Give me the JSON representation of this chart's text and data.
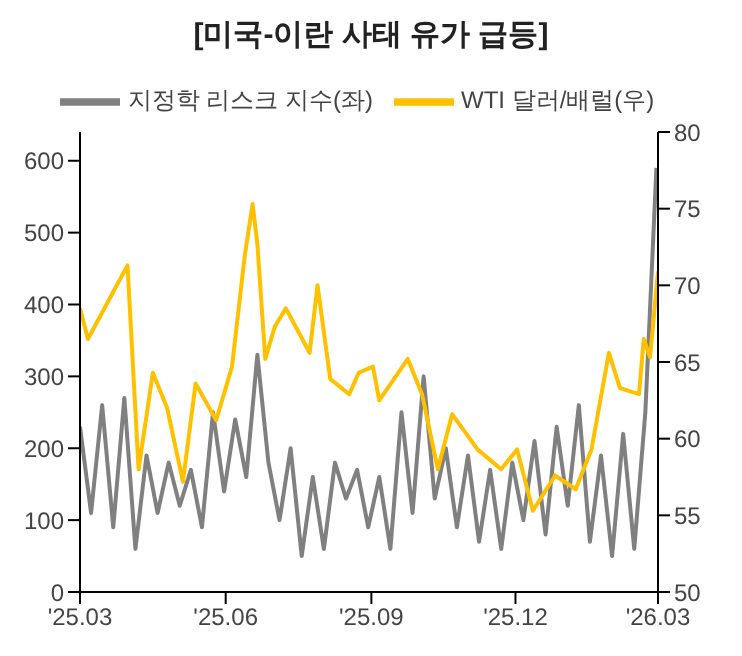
{
  "chart_data": {
    "type": "line",
    "title": "[미국-이란 사태 유가 급등]",
    "legend": "top",
    "xlim": [
      "2025-03-01",
      "2026-03-01"
    ],
    "xticks": [
      {
        "value": "2025-03-01",
        "label": "'25.03"
      },
      {
        "value": "2025-06-01",
        "label": "'25.06"
      },
      {
        "value": "2025-09-01",
        "label": "'25.09"
      },
      {
        "value": "2025-12-01",
        "label": "'25.12"
      },
      {
        "value": "2026-03-01",
        "label": "'26.03"
      }
    ],
    "ylim": [
      0,
      640
    ],
    "yticks": [
      0,
      100,
      200,
      300,
      400,
      500,
      600
    ],
    "y2lim": [
      50,
      80
    ],
    "y2ticks": [
      50,
      55,
      60,
      65,
      70,
      75,
      80
    ],
    "series": [
      {
        "name": "지정학 리스크 지수(좌)",
        "color": "#808080",
        "axis": "y",
        "x": [
          "2025-03-01",
          "2025-03-08",
          "2025-03-15",
          "2025-03-22",
          "2025-03-29",
          "2025-04-05",
          "2025-04-12",
          "2025-04-19",
          "2025-04-26",
          "2025-05-03",
          "2025-05-10",
          "2025-05-17",
          "2025-05-24",
          "2025-05-31",
          "2025-06-07",
          "2025-06-14",
          "2025-06-21",
          "2025-06-28",
          "2025-07-05",
          "2025-07-12",
          "2025-07-19",
          "2025-07-26",
          "2025-08-02",
          "2025-08-09",
          "2025-08-16",
          "2025-08-23",
          "2025-08-30",
          "2025-09-06",
          "2025-09-13",
          "2025-09-20",
          "2025-09-27",
          "2025-10-04",
          "2025-10-11",
          "2025-10-18",
          "2025-10-25",
          "2025-11-01",
          "2025-11-08",
          "2025-11-15",
          "2025-11-22",
          "2025-11-29",
          "2025-12-06",
          "2025-12-13",
          "2025-12-20",
          "2025-12-27",
          "2026-01-03",
          "2026-01-10",
          "2026-01-17",
          "2026-01-24",
          "2026-01-31",
          "2026-02-07",
          "2026-02-14",
          "2026-02-21",
          "2026-02-28"
        ],
        "values": [
          230,
          110,
          260,
          90,
          270,
          60,
          190,
          110,
          180,
          120,
          170,
          90,
          250,
          140,
          240,
          160,
          330,
          180,
          100,
          200,
          50,
          160,
          60,
          180,
          130,
          170,
          90,
          160,
          60,
          250,
          110,
          300,
          130,
          200,
          90,
          190,
          70,
          170,
          60,
          180,
          100,
          210,
          80,
          230,
          120,
          260,
          70,
          190,
          50,
          220,
          60,
          250,
          590
        ]
      },
      {
        "name": "WTI 달러/배럴(우)",
        "color": "#ffc000",
        "axis": "y2",
        "x": [
          "2025-03-01",
          "2025-03-06",
          "2025-03-31",
          "2025-04-07",
          "2025-04-16",
          "2025-04-25",
          "2025-05-05",
          "2025-05-13",
          "2025-05-26",
          "2025-06-05",
          "2025-06-13",
          "2025-06-18",
          "2025-06-21",
          "2025-06-26",
          "2025-07-02",
          "2025-07-09",
          "2025-07-24",
          "2025-07-29",
          "2025-08-06",
          "2025-08-18",
          "2025-08-24",
          "2025-09-02",
          "2025-09-06",
          "2025-09-24",
          "2025-10-03",
          "2025-10-13",
          "2025-10-22",
          "2025-11-07",
          "2025-11-22",
          "2025-12-02",
          "2025-12-12",
          "2025-12-26",
          "2026-01-08",
          "2026-01-18",
          "2026-01-29",
          "2026-02-05",
          "2026-02-17",
          "2026-02-20",
          "2026-02-24",
          "2026-03-01"
        ],
        "values": [
          68.5,
          66.5,
          71.3,
          58,
          64.3,
          62,
          57.2,
          63.6,
          61.2,
          64.7,
          71.9,
          75.3,
          72.7,
          65.2,
          67.3,
          68.5,
          65.6,
          70,
          63.9,
          62.9,
          64.3,
          64.7,
          62.5,
          65.2,
          62.9,
          58,
          61.6,
          59.3,
          58,
          59.3,
          55.3,
          57.6,
          56.7,
          59.3,
          65.6,
          63.3,
          62.9,
          66.5,
          65.3,
          70.9
        ]
      }
    ]
  }
}
